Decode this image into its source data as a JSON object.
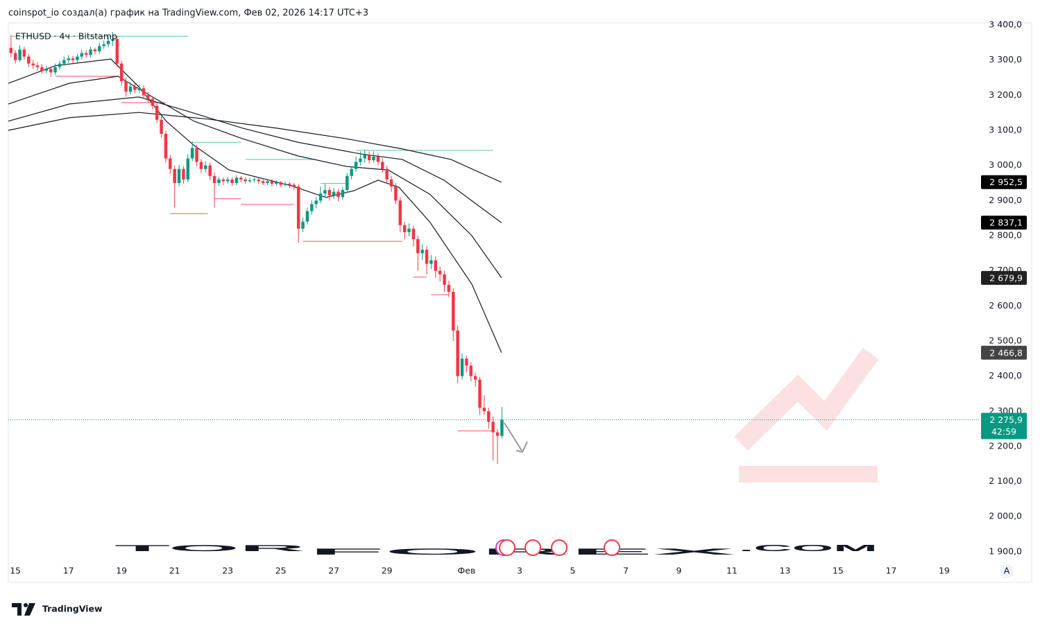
{
  "chart_data": {
    "type": "candlestick",
    "title": "coinspot_io создал(а) график на TradingView.com, Фев 02, 2026 14:17 UTC+3",
    "symbol": "ETHUSD · 4ч · Bitstamp",
    "brand": "TradingView",
    "scale_button": "A",
    "watermark": [
      "TOR",
      "FOREX",
      ".COM"
    ],
    "up_color": "#089981",
    "down_color": "#f23645",
    "xlim": [
      -0.6,
      218.7
    ],
    "ylim": [
      1882,
      3406
    ],
    "xticks": [
      {
        "value": 1,
        "label": "15"
      },
      {
        "value": 13,
        "label": "17"
      },
      {
        "value": 25,
        "label": "19"
      },
      {
        "value": 37,
        "label": "21"
      },
      {
        "value": 49,
        "label": "23"
      },
      {
        "value": 61,
        "label": "25"
      },
      {
        "value": 73,
        "label": "27"
      },
      {
        "value": 85,
        "label": "29"
      },
      {
        "value": 103,
        "label": "Фев"
      },
      {
        "value": 115,
        "label": "3"
      },
      {
        "value": 127,
        "label": "5"
      },
      {
        "value": 139,
        "label": "7"
      },
      {
        "value": 151,
        "label": "9"
      },
      {
        "value": 163,
        "label": "11"
      },
      {
        "value": 175,
        "label": "13"
      },
      {
        "value": 187,
        "label": "15"
      },
      {
        "value": 199,
        "label": "17"
      },
      {
        "value": 211,
        "label": "19"
      }
    ],
    "yticks": [
      {
        "value": 3400,
        "label": "3 400,0"
      },
      {
        "value": 3300,
        "label": "3 300,0"
      },
      {
        "value": 3200,
        "label": "3 200,0"
      },
      {
        "value": 3100,
        "label": "3 100,0"
      },
      {
        "value": 3000,
        "label": "3 000,0"
      },
      {
        "value": 2900,
        "label": "2 900,0"
      },
      {
        "value": 2800,
        "label": "2 800,0"
      },
      {
        "value": 2700,
        "label": "2 700,0"
      },
      {
        "value": 2600,
        "label": "2 600,0"
      },
      {
        "value": 2500,
        "label": "2 500,0"
      },
      {
        "value": 2400,
        "label": "2 400,0"
      },
      {
        "value": 2300,
        "label": "2 300,0"
      },
      {
        "value": 2200,
        "label": "2 200,0"
      },
      {
        "value": 2100,
        "label": "2 100,0"
      },
      {
        "value": 2000,
        "label": "2 000,0"
      },
      {
        "value": 1900,
        "label": "1 900,0"
      }
    ],
    "ohlc": [
      [
        3335,
        3372,
        3308,
        3320
      ],
      [
        3320,
        3328,
        3290,
        3300
      ],
      [
        3300,
        3342,
        3295,
        3330
      ],
      [
        3330,
        3338,
        3302,
        3310
      ],
      [
        3310,
        3318,
        3280,
        3290
      ],
      [
        3290,
        3300,
        3275,
        3285
      ],
      [
        3285,
        3294,
        3270,
        3280
      ],
      [
        3280,
        3288,
        3262,
        3270
      ],
      [
        3270,
        3284,
        3262,
        3275
      ],
      [
        3275,
        3282,
        3252,
        3265
      ],
      [
        3265,
        3290,
        3258,
        3280
      ],
      [
        3280,
        3298,
        3272,
        3290
      ],
      [
        3290,
        3310,
        3284,
        3300
      ],
      [
        3300,
        3314,
        3292,
        3305
      ],
      [
        3305,
        3312,
        3292,
        3300
      ],
      [
        3300,
        3318,
        3294,
        3310
      ],
      [
        3310,
        3330,
        3302,
        3320
      ],
      [
        3320,
        3328,
        3306,
        3315
      ],
      [
        3315,
        3338,
        3308,
        3330
      ],
      [
        3330,
        3336,
        3316,
        3325
      ],
      [
        3325,
        3350,
        3318,
        3340
      ],
      [
        3340,
        3356,
        3332,
        3345
      ],
      [
        3345,
        3366,
        3336,
        3355
      ],
      [
        3355,
        3380,
        3340,
        3360
      ],
      [
        3360,
        3368,
        3280,
        3290
      ],
      [
        3290,
        3298,
        3228,
        3240
      ],
      [
        3240,
        3250,
        3196,
        3210
      ],
      [
        3210,
        3236,
        3202,
        3225
      ],
      [
        3225,
        3234,
        3205,
        3215
      ],
      [
        3215,
        3230,
        3206,
        3220
      ],
      [
        3220,
        3228,
        3190,
        3200
      ],
      [
        3200,
        3210,
        3180,
        3190
      ],
      [
        3190,
        3198,
        3160,
        3170
      ],
      [
        3170,
        3178,
        3120,
        3130
      ],
      [
        3130,
        3140,
        3080,
        3090
      ],
      [
        3090,
        3098,
        3008,
        3020
      ],
      [
        3020,
        3030,
        2975,
        2990
      ],
      [
        2990,
        3000,
        2880,
        2950
      ],
      [
        2950,
        3002,
        2940,
        2990
      ],
      [
        2990,
        2998,
        2948,
        2960
      ],
      [
        2960,
        3032,
        2952,
        3020
      ],
      [
        3020,
        3068,
        3012,
        3050
      ],
      [
        3050,
        3058,
        2998,
        3010
      ],
      [
        3010,
        3018,
        2978,
        2990
      ],
      [
        2990,
        3012,
        2980,
        3000
      ],
      [
        3000,
        3008,
        2958,
        2970
      ],
      [
        2970,
        2980,
        2880,
        2950
      ],
      [
        2950,
        2968,
        2942,
        2960
      ],
      [
        2960,
        2966,
        2944,
        2955
      ],
      [
        2955,
        2968,
        2948,
        2960
      ],
      [
        2960,
        2966,
        2942,
        2950
      ],
      [
        2950,
        2972,
        2944,
        2965
      ],
      [
        2965,
        2970,
        2952,
        2960
      ],
      [
        2960,
        2966,
        2948,
        2955
      ],
      [
        2955,
        2964,
        2950,
        2958
      ],
      [
        2958,
        2966,
        2952,
        2960
      ],
      [
        2960,
        2964,
        2948,
        2955
      ],
      [
        2955,
        2960,
        2944,
        2950
      ],
      [
        2950,
        2960,
        2944,
        2955
      ],
      [
        2955,
        2960,
        2940,
        2948
      ],
      [
        2948,
        2958,
        2942,
        2952
      ],
      [
        2952,
        2956,
        2938,
        2945
      ],
      [
        2945,
        2954,
        2940,
        2948
      ],
      [
        2948,
        2952,
        2936,
        2945
      ],
      [
        2945,
        2950,
        2930,
        2940
      ],
      [
        2940,
        2946,
        2780,
        2820
      ],
      [
        2820,
        2852,
        2810,
        2840
      ],
      [
        2840,
        2880,
        2832,
        2870
      ],
      [
        2870,
        2900,
        2860,
        2890
      ],
      [
        2890,
        2910,
        2878,
        2900
      ],
      [
        2900,
        2940,
        2892,
        2920
      ],
      [
        2920,
        2948,
        2910,
        2930
      ],
      [
        2930,
        2938,
        2900,
        2915
      ],
      [
        2915,
        2936,
        2905,
        2925
      ],
      [
        2925,
        2932,
        2898,
        2910
      ],
      [
        2910,
        2938,
        2902,
        2930
      ],
      [
        2930,
        2978,
        2922,
        2970
      ],
      [
        2970,
        2998,
        2960,
        2990
      ],
      [
        2990,
        3025,
        2982,
        3010
      ],
      [
        3010,
        3040,
        3000,
        3020
      ],
      [
        3020,
        3045,
        3008,
        3030
      ],
      [
        3030,
        3040,
        3005,
        3015
      ],
      [
        3015,
        3040,
        3008,
        3025
      ],
      [
        3025,
        3034,
        3000,
        3010
      ],
      [
        3010,
        3020,
        2980,
        2990
      ],
      [
        2990,
        3000,
        2950,
        2960
      ],
      [
        2960,
        2970,
        2925,
        2940
      ],
      [
        2940,
        2950,
        2890,
        2900
      ],
      [
        2900,
        2910,
        2810,
        2830
      ],
      [
        2830,
        2840,
        2790,
        2810
      ],
      [
        2810,
        2835,
        2798,
        2820
      ],
      [
        2820,
        2828,
        2770,
        2790
      ],
      [
        2790,
        2800,
        2700,
        2750
      ],
      [
        2750,
        2775,
        2730,
        2760
      ],
      [
        2760,
        2770,
        2690,
        2720
      ],
      [
        2720,
        2745,
        2705,
        2730
      ],
      [
        2730,
        2740,
        2680,
        2700
      ],
      [
        2700,
        2712,
        2670,
        2690
      ],
      [
        2690,
        2700,
        2640,
        2660
      ],
      [
        2660,
        2672,
        2625,
        2640
      ],
      [
        2640,
        2650,
        2500,
        2530
      ],
      [
        2530,
        2545,
        2380,
        2400
      ],
      [
        2400,
        2465,
        2390,
        2450
      ],
      [
        2450,
        2458,
        2410,
        2430
      ],
      [
        2430,
        2440,
        2385,
        2400
      ],
      [
        2400,
        2410,
        2370,
        2390
      ],
      [
        2390,
        2398,
        2290,
        2310
      ],
      [
        2310,
        2345,
        2290,
        2300
      ],
      [
        2300,
        2310,
        2250,
        2270
      ],
      [
        2270,
        2285,
        2160,
        2240
      ],
      [
        2240,
        2250,
        2150,
        2230
      ],
      [
        2230,
        2312,
        2222,
        2275.9
      ]
    ],
    "lines": [
      {
        "color": "#131722",
        "x": [
          -0.6,
          10,
          22.6,
          28.9,
          35.1,
          41.4,
          49.3,
          63.4,
          71.2,
          77.5,
          83,
          87.7,
          94.7,
          104.2,
          110.9
        ],
        "values": [
          3234,
          3284,
          3303,
          3224,
          3126,
          3057,
          2987,
          2942,
          2909,
          2928,
          2958,
          2938,
          2839,
          2662,
          2467
        ]
      },
      {
        "color": "#131722",
        "x": [
          -0.6,
          13.2,
          24.2,
          32,
          41.4,
          52.4,
          64.9,
          75.9,
          85.3,
          94.7,
          104.2,
          110.9
        ],
        "values": [
          3175,
          3234,
          3254,
          3195,
          3126,
          3076,
          3027,
          2997,
          2987,
          2918,
          2800,
          2680
        ]
      },
      {
        "color": "#131722",
        "x": [
          -0.6,
          13.2,
          28.9,
          39.8,
          52.4,
          64.9,
          79,
          88.5,
          97.9,
          110.9
        ],
        "values": [
          3126,
          3175,
          3195,
          3155,
          3106,
          3066,
          3033,
          3017,
          2958,
          2837
        ]
      },
      {
        "color": "#131722",
        "x": [
          -0.6,
          13.2,
          28.9,
          44.5,
          60.2,
          75.9,
          88.5,
          99.5,
          110.9
        ],
        "values": [
          3100,
          3136,
          3151,
          3132,
          3106,
          3076,
          3047,
          3017,
          2952
        ]
      }
    ],
    "levels": [
      {
        "from": 0,
        "to": 40,
        "value": 3368,
        "color": "#5cc6a0"
      },
      {
        "from": 10,
        "to": 24,
        "value": 3254,
        "color": "#f7525f"
      },
      {
        "from": 25,
        "to": 35,
        "value": 3179,
        "color": "#f7525f"
      },
      {
        "from": 36,
        "to": 44.5,
        "value": 2863,
        "color": "#f7525f"
      },
      {
        "from": 41,
        "to": 52,
        "value": 3066,
        "color": "#5cc6a0"
      },
      {
        "from": 46,
        "to": 52,
        "value": 2905,
        "color": "#f7525f"
      },
      {
        "from": 53,
        "to": 69,
        "value": 3017,
        "color": "#5cc6a0"
      },
      {
        "from": 52,
        "to": 64,
        "value": 2889,
        "color": "#f7525f"
      },
      {
        "from": 66,
        "to": 88.5,
        "value": 2784,
        "color": "#f7525f"
      },
      {
        "from": 70,
        "to": 76,
        "value": 2949,
        "color": "#5cc6a0"
      },
      {
        "from": 78,
        "to": 109,
        "value": 3043,
        "color": "#5cc6a0"
      },
      {
        "from": 91,
        "to": 94,
        "value": 2682,
        "color": "#f7525f"
      },
      {
        "from": 95,
        "to": 99,
        "value": 2632,
        "color": "#f7525f"
      },
      {
        "from": 101,
        "to": 109,
        "value": 2244,
        "color": "#f7525f"
      }
    ],
    "price_tags": [
      {
        "value": 2952.5,
        "label": "2 952,5",
        "color": "#000000"
      },
      {
        "value": 2837.1,
        "label": "2 837,1",
        "color": "#000000"
      },
      {
        "value": 2679.9,
        "label": "2 679,9",
        "color": "#222222"
      },
      {
        "value": 2466.8,
        "label": "2 466,8",
        "color": "#444444"
      }
    ],
    "current_price": {
      "value": 2275.9,
      "label": "2 275,9",
      "countdown": "42:59",
      "color": "#089981"
    }
  }
}
